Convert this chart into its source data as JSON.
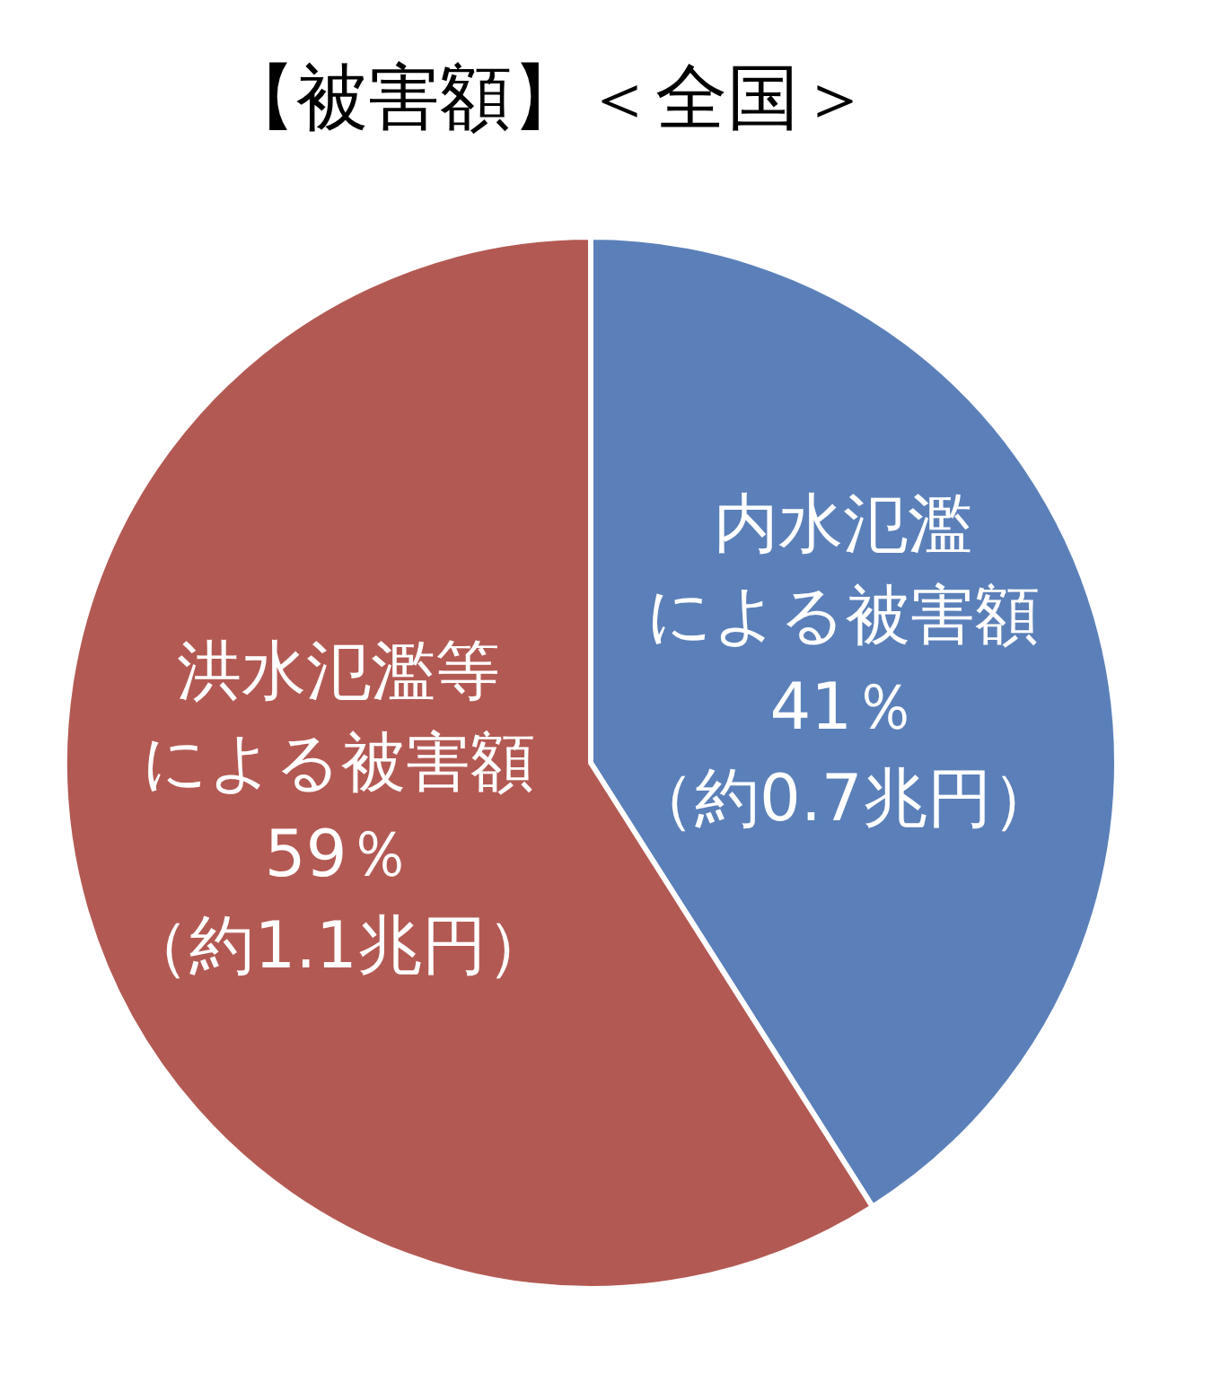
{
  "chart_data": {
    "type": "pie",
    "title": "【被害額】＜全国＞",
    "categories": [
      "内水氾濫による被害額",
      "洪水氾濫等による被害額"
    ],
    "values": [
      41,
      59
    ],
    "colors": [
      "#5b80b9",
      "#b35953"
    ],
    "value_labels": [
      "41％（約0.7兆円）",
      "59％（約1.1兆円）"
    ]
  }
}
